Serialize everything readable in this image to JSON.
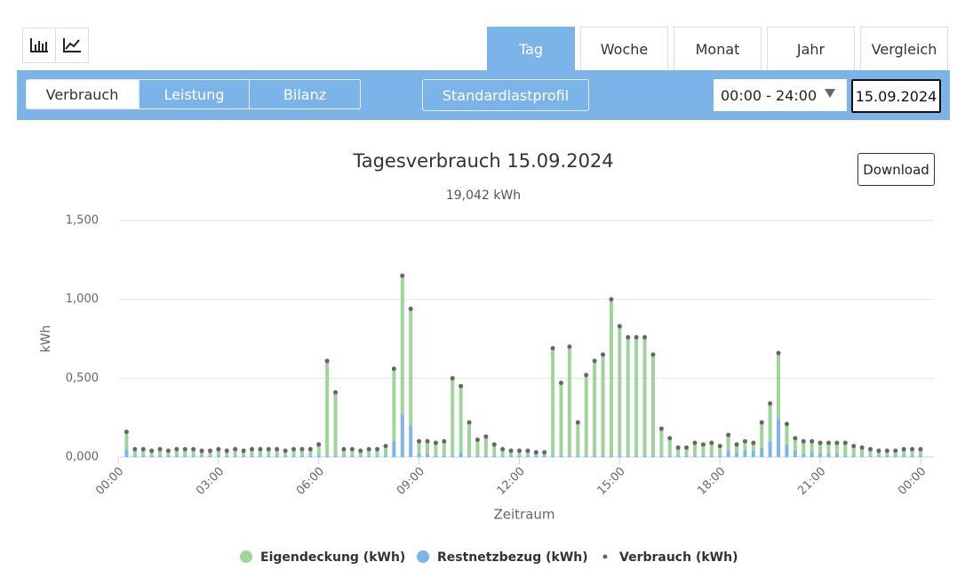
{
  "toolbar": {
    "tabs": [
      "Tag",
      "Woche",
      "Monat",
      "Jahr",
      "Vergleich"
    ],
    "modes": [
      "Verbrauch",
      "Leistung",
      "Bilanz"
    ],
    "profile_button": "Standardlastprofil",
    "time_range": "00:00 - 24:00",
    "date": "15.09.2024"
  },
  "download_button": "Download",
  "chart_data": {
    "type": "bar",
    "stacked": true,
    "title": "Tagesverbrauch 15.09.2024",
    "subtitle": "19,042 kWh",
    "x_label": "Zeitraum",
    "y_label": "kWh",
    "xlim": [
      0,
      24.4
    ],
    "xticks": [
      {
        "value": 0,
        "label": "00:00"
      },
      {
        "value": 3,
        "label": "03:00"
      },
      {
        "value": 6,
        "label": "06:00"
      },
      {
        "value": 9,
        "label": "09:00"
      },
      {
        "value": 12,
        "label": "12:00"
      },
      {
        "value": 15,
        "label": "15:00"
      },
      {
        "value": 18,
        "label": "18:00"
      },
      {
        "value": 21,
        "label": "21:00"
      },
      {
        "value": 24,
        "label": "00:00"
      }
    ],
    "ylim": [
      0,
      1.5
    ],
    "yticks": [
      {
        "value": 0,
        "label": "0,000"
      },
      {
        "value": 0.5,
        "label": "0,500"
      },
      {
        "value": 1,
        "label": "1,000"
      },
      {
        "value": 1.5,
        "label": "1,500"
      }
    ],
    "grid": true,
    "legend": "bottom",
    "x": [
      0.25,
      0.5,
      0.75,
      1,
      1.25,
      1.5,
      1.75,
      2,
      2.25,
      2.5,
      2.75,
      3,
      3.25,
      3.5,
      3.75,
      4,
      4.25,
      4.5,
      4.75,
      5,
      5.25,
      5.5,
      5.75,
      6,
      6.25,
      6.5,
      6.75,
      7,
      7.25,
      7.5,
      7.75,
      8,
      8.25,
      8.5,
      8.75,
      9,
      9.25,
      9.5,
      9.75,
      10,
      10.25,
      10.5,
      10.75,
      11,
      11.25,
      11.5,
      11.75,
      12,
      12.25,
      12.5,
      12.75,
      13,
      13.25,
      13.5,
      13.75,
      14,
      14.25,
      14.5,
      14.75,
      15,
      15.25,
      15.5,
      15.75,
      16,
      16.25,
      16.5,
      16.75,
      17,
      17.25,
      17.5,
      17.75,
      18,
      18.25,
      18.5,
      18.75,
      19,
      19.25,
      19.5,
      19.75,
      20,
      20.25,
      20.5,
      20.75,
      21,
      21.25,
      21.5,
      21.75,
      22,
      22.25,
      22.5,
      22.75,
      23,
      23.25,
      23.5,
      23.75,
      24
    ],
    "series": [
      {
        "name": "Eigendeckung (kWh)",
        "type": "bar",
        "color": "#9fd49b",
        "values": [
          0.11,
          0.04,
          0.04,
          0.03,
          0.04,
          0.03,
          0.04,
          0.04,
          0.04,
          0.03,
          0.03,
          0.04,
          0.03,
          0.04,
          0.03,
          0.04,
          0.04,
          0.04,
          0.04,
          0.03,
          0.04,
          0.04,
          0.04,
          0.07,
          0.6,
          0.4,
          0.04,
          0.04,
          0.03,
          0.04,
          0.04,
          0.06,
          0.46,
          0.88,
          0.74,
          0.08,
          0.08,
          0.08,
          0.09,
          0.49,
          0.42,
          0.21,
          0.1,
          0.12,
          0.07,
          0.04,
          0.03,
          0.03,
          0.03,
          0.02,
          0.02,
          0.68,
          0.46,
          0.69,
          0.21,
          0.51,
          0.6,
          0.64,
          0.99,
          0.82,
          0.75,
          0.75,
          0.75,
          0.64,
          0.17,
          0.11,
          0.05,
          0.05,
          0.08,
          0.07,
          0.08,
          0.06,
          0.1,
          0.05,
          0.06,
          0.05,
          0.16,
          0.24,
          0.42,
          0.13,
          0.08,
          0.08,
          0.07,
          0.07,
          0.07,
          0.07,
          0.08,
          0.06,
          0.05,
          0.04,
          0.03,
          0.03,
          0.03,
          0.04,
          0.04,
          0.04
        ]
      },
      {
        "name": "Restnetzbezug (kWh)",
        "type": "bar",
        "color": "#7cb5ec",
        "values": [
          0.05,
          0.01,
          0.01,
          0.01,
          0.01,
          0.01,
          0.01,
          0.01,
          0.01,
          0.01,
          0.01,
          0.01,
          0.01,
          0.01,
          0.01,
          0.01,
          0.01,
          0.01,
          0.01,
          0.01,
          0.01,
          0.01,
          0.01,
          0.01,
          0.01,
          0.01,
          0.01,
          0.01,
          0.01,
          0.01,
          0.01,
          0.01,
          0.1,
          0.27,
          0.2,
          0.02,
          0.02,
          0.01,
          0.01,
          0.01,
          0.03,
          0.01,
          0.01,
          0.01,
          0.01,
          0.01,
          0.01,
          0.01,
          0.01,
          0.01,
          0.01,
          0.01,
          0.01,
          0.01,
          0.01,
          0.01,
          0.01,
          0.01,
          0.01,
          0.01,
          0.01,
          0.01,
          0.01,
          0.01,
          0.01,
          0.01,
          0.01,
          0.01,
          0.01,
          0.01,
          0.01,
          0.01,
          0.04,
          0.03,
          0.04,
          0.04,
          0.06,
          0.1,
          0.24,
          0.08,
          0.04,
          0.02,
          0.03,
          0.02,
          0.02,
          0.02,
          0.01,
          0.01,
          0.01,
          0.01,
          0.01,
          0.01,
          0.01,
          0.01,
          0.01,
          0.01
        ]
      },
      {
        "name": "Verbrauch (kWh)",
        "type": "scatter",
        "color": "#666666",
        "values": [
          0.16,
          0.05,
          0.05,
          0.04,
          0.05,
          0.04,
          0.05,
          0.05,
          0.05,
          0.04,
          0.04,
          0.05,
          0.04,
          0.05,
          0.04,
          0.05,
          0.05,
          0.05,
          0.05,
          0.04,
          0.05,
          0.05,
          0.05,
          0.08,
          0.61,
          0.41,
          0.05,
          0.05,
          0.04,
          0.05,
          0.05,
          0.07,
          0.56,
          1.15,
          0.94,
          0.1,
          0.1,
          0.09,
          0.1,
          0.5,
          0.45,
          0.22,
          0.11,
          0.13,
          0.08,
          0.05,
          0.04,
          0.04,
          0.04,
          0.03,
          0.03,
          0.69,
          0.47,
          0.7,
          0.22,
          0.52,
          0.61,
          0.65,
          1.0,
          0.83,
          0.76,
          0.76,
          0.76,
          0.65,
          0.18,
          0.12,
          0.06,
          0.06,
          0.09,
          0.08,
          0.09,
          0.07,
          0.14,
          0.08,
          0.1,
          0.09,
          0.22,
          0.34,
          0.66,
          0.21,
          0.12,
          0.1,
          0.1,
          0.09,
          0.09,
          0.09,
          0.09,
          0.07,
          0.06,
          0.05,
          0.04,
          0.04,
          0.04,
          0.05,
          0.05,
          0.05
        ]
      }
    ]
  }
}
